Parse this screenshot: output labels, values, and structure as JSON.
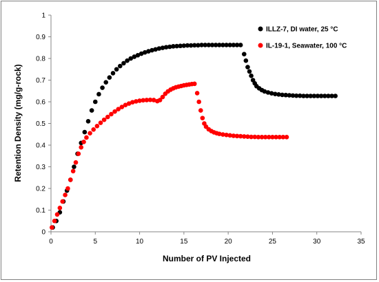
{
  "chart_data": {
    "type": "scatter",
    "xlabel": "Number of PV Injected",
    "ylabel": "Retention Density (mg/g-rock)",
    "xlim": [
      0,
      35
    ],
    "ylim": [
      0,
      1
    ],
    "xticks": [
      0,
      5,
      10,
      15,
      20,
      25,
      30,
      35
    ],
    "yticks": [
      0,
      0.1,
      0.2,
      0.3,
      0.4,
      0.5,
      0.6,
      0.7,
      0.8,
      0.9,
      1
    ],
    "xtick_labels": [
      "0",
      "5",
      "10",
      "15",
      "20",
      "25",
      "30",
      "35"
    ],
    "ytick_labels": [
      "0",
      "0.1",
      "0.2",
      "0.3",
      "0.4",
      "0.5",
      "0.6",
      "0.7",
      "0.8",
      "0.9",
      "1"
    ],
    "grid": false,
    "legend_position": "top-right",
    "series": [
      {
        "name": "ILLZ-7, DI water, 25 °C",
        "color": "#000000",
        "points": [
          [
            0.2,
            0.02
          ],
          [
            0.6,
            0.05
          ],
          [
            1.0,
            0.09
          ],
          [
            1.4,
            0.14
          ],
          [
            1.8,
            0.19
          ],
          [
            2.2,
            0.24
          ],
          [
            2.6,
            0.3
          ],
          [
            3.0,
            0.36
          ],
          [
            3.4,
            0.41
          ],
          [
            3.8,
            0.46
          ],
          [
            4.2,
            0.51
          ],
          [
            4.6,
            0.56
          ],
          [
            5.0,
            0.6
          ],
          [
            5.4,
            0.635
          ],
          [
            5.8,
            0.665
          ],
          [
            6.2,
            0.69
          ],
          [
            6.6,
            0.712
          ],
          [
            7.0,
            0.732
          ],
          [
            7.4,
            0.75
          ],
          [
            7.8,
            0.765
          ],
          [
            8.2,
            0.778
          ],
          [
            8.6,
            0.79
          ],
          [
            9.0,
            0.8
          ],
          [
            9.4,
            0.808
          ],
          [
            9.8,
            0.815
          ],
          [
            10.2,
            0.822
          ],
          [
            10.6,
            0.828
          ],
          [
            11.0,
            0.833
          ],
          [
            11.4,
            0.838
          ],
          [
            11.8,
            0.842
          ],
          [
            12.2,
            0.846
          ],
          [
            12.6,
            0.849
          ],
          [
            13.0,
            0.852
          ],
          [
            13.4,
            0.854
          ],
          [
            13.8,
            0.856
          ],
          [
            14.2,
            0.857
          ],
          [
            14.6,
            0.858
          ],
          [
            15.0,
            0.859
          ],
          [
            15.4,
            0.86
          ],
          [
            15.8,
            0.86
          ],
          [
            16.2,
            0.861
          ],
          [
            16.6,
            0.861
          ],
          [
            17.0,
            0.862
          ],
          [
            17.4,
            0.862
          ],
          [
            17.8,
            0.862
          ],
          [
            18.2,
            0.862
          ],
          [
            18.6,
            0.862
          ],
          [
            19.0,
            0.862
          ],
          [
            19.4,
            0.862
          ],
          [
            19.8,
            0.862
          ],
          [
            20.2,
            0.862
          ],
          [
            20.6,
            0.862
          ],
          [
            21.0,
            0.862
          ],
          [
            21.4,
            0.862
          ],
          [
            21.8,
            0.82
          ],
          [
            22.0,
            0.79
          ],
          [
            22.2,
            0.76
          ],
          [
            22.4,
            0.74
          ],
          [
            22.6,
            0.72
          ],
          [
            22.8,
            0.7
          ],
          [
            23.0,
            0.685
          ],
          [
            23.2,
            0.672
          ],
          [
            23.5,
            0.662
          ],
          [
            23.8,
            0.654
          ],
          [
            24.1,
            0.648
          ],
          [
            24.5,
            0.643
          ],
          [
            24.9,
            0.639
          ],
          [
            25.3,
            0.636
          ],
          [
            25.7,
            0.634
          ],
          [
            26.1,
            0.632
          ],
          [
            26.5,
            0.631
          ],
          [
            26.9,
            0.63
          ],
          [
            27.3,
            0.629
          ],
          [
            27.7,
            0.628
          ],
          [
            28.1,
            0.628
          ],
          [
            28.5,
            0.627
          ],
          [
            28.9,
            0.627
          ],
          [
            29.3,
            0.627
          ],
          [
            29.7,
            0.627
          ],
          [
            30.1,
            0.627
          ],
          [
            30.5,
            0.627
          ],
          [
            30.9,
            0.627
          ],
          [
            31.3,
            0.627
          ],
          [
            31.7,
            0.627
          ],
          [
            32.1,
            0.627
          ]
        ]
      },
      {
        "name": "IL-19-1, Seawater, 100 °C",
        "color": "#ff0000",
        "points": [
          [
            0.1,
            0.02
          ],
          [
            0.4,
            0.05
          ],
          [
            0.7,
            0.08
          ],
          [
            1.0,
            0.11
          ],
          [
            1.3,
            0.14
          ],
          [
            1.6,
            0.17
          ],
          [
            1.9,
            0.2
          ],
          [
            2.2,
            0.24
          ],
          [
            2.5,
            0.28
          ],
          [
            2.8,
            0.32
          ],
          [
            3.1,
            0.36
          ],
          [
            3.4,
            0.39
          ],
          [
            3.7,
            0.415
          ],
          [
            4.0,
            0.435
          ],
          [
            4.4,
            0.455
          ],
          [
            4.8,
            0.472
          ],
          [
            5.2,
            0.488
          ],
          [
            5.6,
            0.503
          ],
          [
            6.0,
            0.517
          ],
          [
            6.4,
            0.53
          ],
          [
            6.8,
            0.543
          ],
          [
            7.2,
            0.555
          ],
          [
            7.6,
            0.566
          ],
          [
            8.0,
            0.576
          ],
          [
            8.4,
            0.585
          ],
          [
            8.8,
            0.592
          ],
          [
            9.2,
            0.598
          ],
          [
            9.6,
            0.602
          ],
          [
            10.0,
            0.605
          ],
          [
            10.4,
            0.607
          ],
          [
            10.8,
            0.608
          ],
          [
            11.2,
            0.609
          ],
          [
            11.6,
            0.608
          ],
          [
            12.0,
            0.603
          ],
          [
            12.3,
            0.608
          ],
          [
            12.6,
            0.622
          ],
          [
            12.9,
            0.637
          ],
          [
            13.2,
            0.648
          ],
          [
            13.5,
            0.656
          ],
          [
            13.8,
            0.662
          ],
          [
            14.1,
            0.667
          ],
          [
            14.4,
            0.67
          ],
          [
            14.7,
            0.673
          ],
          [
            15.0,
            0.676
          ],
          [
            15.3,
            0.678
          ],
          [
            15.6,
            0.68
          ],
          [
            15.9,
            0.682
          ],
          [
            16.2,
            0.683
          ],
          [
            16.5,
            0.64
          ],
          [
            16.7,
            0.6
          ],
          [
            16.9,
            0.56
          ],
          [
            17.1,
            0.525
          ],
          [
            17.3,
            0.5
          ],
          [
            17.5,
            0.485
          ],
          [
            17.8,
            0.473
          ],
          [
            18.1,
            0.465
          ],
          [
            18.4,
            0.459
          ],
          [
            18.7,
            0.455
          ],
          [
            19.0,
            0.452
          ],
          [
            19.4,
            0.449
          ],
          [
            19.8,
            0.447
          ],
          [
            20.2,
            0.445
          ],
          [
            20.6,
            0.443
          ],
          [
            21.0,
            0.442
          ],
          [
            21.4,
            0.441
          ],
          [
            21.8,
            0.44
          ],
          [
            22.2,
            0.439
          ],
          [
            22.6,
            0.438
          ],
          [
            23.0,
            0.438
          ],
          [
            23.4,
            0.437
          ],
          [
            23.8,
            0.437
          ],
          [
            24.2,
            0.437
          ],
          [
            24.6,
            0.437
          ],
          [
            25.0,
            0.437
          ],
          [
            25.4,
            0.437
          ],
          [
            25.8,
            0.437
          ],
          [
            26.2,
            0.437
          ],
          [
            26.6,
            0.437
          ]
        ]
      }
    ]
  }
}
